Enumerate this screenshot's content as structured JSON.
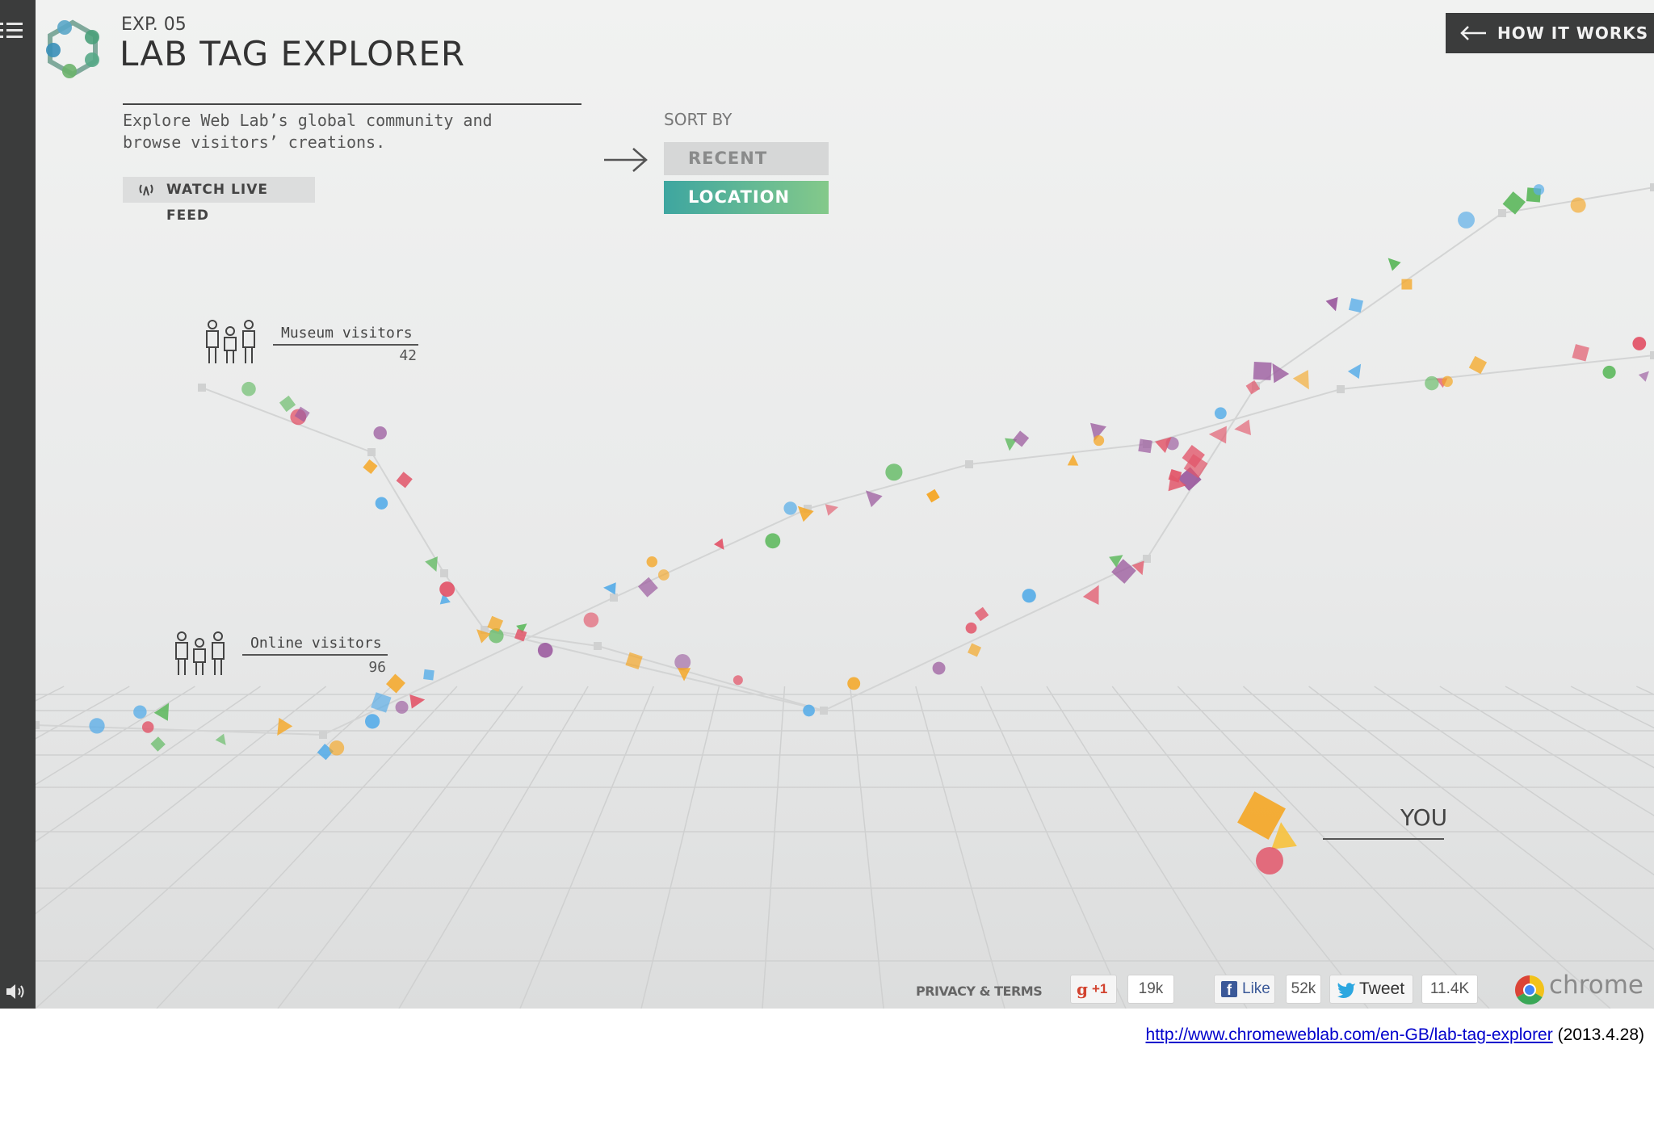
{
  "sidebar": {
    "menu_icon": "menu-icon",
    "sound_icon": "speaker-icon"
  },
  "header": {
    "logo_icon": "hexagon-nodes-logo",
    "exp_label": "EXP. 05",
    "title": "LAB TAG EXPLORER",
    "how_it_works": "HOW IT WORKS"
  },
  "intro": {
    "description": "Explore Web Lab’s global community and\nbrowse visitors’ creations.",
    "live_feed": "WATCH LIVE FEED",
    "live_feed_icon": "broadcast-icon"
  },
  "sort": {
    "label": "SORT BY",
    "options": [
      "RECENT",
      "LOCATION"
    ],
    "selected": "LOCATION",
    "arrow_icon": "arrow-right-icon"
  },
  "groups": [
    {
      "label": "Museum visitors",
      "count": "42"
    },
    {
      "label": "Online visitors",
      "count": "96"
    }
  ],
  "you_label": "YOU",
  "footer": {
    "privacy": "PRIVACY & TERMS",
    "gplus_label": "+1",
    "gplus_count": "19k",
    "fb_label": "Like",
    "fb_count": "52k",
    "tweet_label": "Tweet",
    "tweet_count": "11.4K",
    "chrome_label": "chrome"
  },
  "caption": {
    "url": "http://www.chromeweblab.com/en-GB/lab-tag-explorer",
    "date": "(2013.4.28)"
  },
  "colors": {
    "sidebar": "#3b3c3c",
    "orange": "#f5a623",
    "blue": "#5aaee8",
    "green": "#5cb85c",
    "red": "#e2566a",
    "purple": "#9b5a9e",
    "location_gradient": [
      "#3ea6a0",
      "#84c98a"
    ]
  }
}
